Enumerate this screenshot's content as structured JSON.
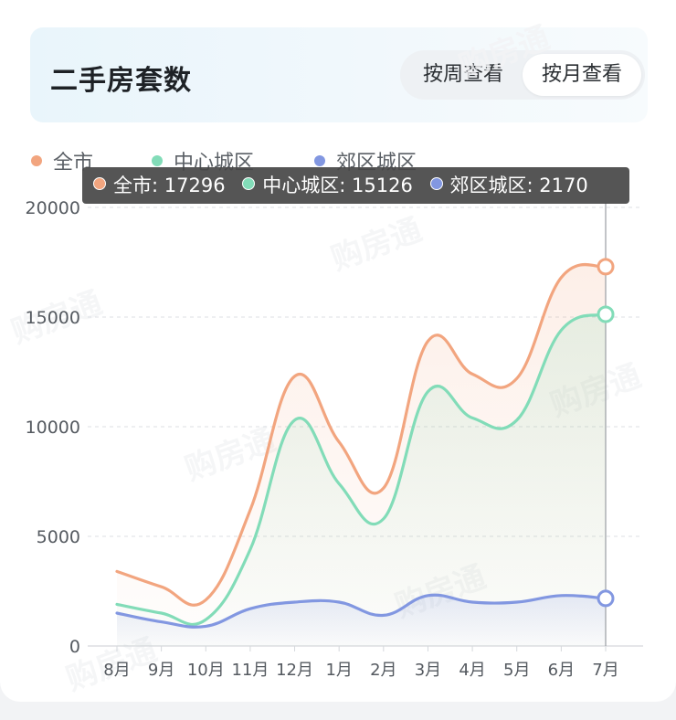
{
  "header": {
    "title": "二手房套数"
  },
  "toggle": {
    "week_label": "按周查看",
    "month_label": "按月查看",
    "selected": "按月查看"
  },
  "watermark": "购房通",
  "colors": {
    "all": "#f2a57f",
    "central": "#82dcb8",
    "suburb": "#8297e1",
    "header_bg": "#eaf6fb"
  },
  "legend": [
    {
      "label": "全市",
      "color": "#f2a57f"
    },
    {
      "label": "中心城区",
      "color": "#82dcb8"
    },
    {
      "label": "郊区城区",
      "color": "#8297e1"
    }
  ],
  "tooltip": {
    "items": [
      {
        "label": "全市",
        "value": "17296",
        "color": "#f2a57f"
      },
      {
        "label": "中心城区",
        "value": "15126",
        "color": "#82dcb8"
      },
      {
        "label": "郊区城区",
        "value": "2170",
        "color": "#8297e1"
      }
    ]
  },
  "chart_data": {
    "type": "area",
    "categories": [
      "8月",
      "9月",
      "10月",
      "11月",
      "12月",
      "1月",
      "2月",
      "3月",
      "4月",
      "5月",
      "6月",
      "7月"
    ],
    "series": [
      {
        "name": "全市",
        "color": "#f2a57f",
        "values": [
          3400,
          2700,
          2100,
          6200,
          12300,
          9300,
          7200,
          13900,
          12400,
          12200,
          16800,
          17296
        ]
      },
      {
        "name": "中心城区",
        "color": "#82dcb8",
        "values": [
          1900,
          1500,
          1200,
          4400,
          10300,
          7400,
          5800,
          11600,
          10400,
          10300,
          14400,
          15126
        ]
      },
      {
        "name": "郊区城区",
        "color": "#8297e1",
        "values": [
          1500,
          1100,
          900,
          1700,
          2000,
          2000,
          1400,
          2300,
          2000,
          2000,
          2300,
          2170
        ]
      }
    ],
    "yticks": [
      "0",
      "5000",
      "10000",
      "15000",
      "20000"
    ],
    "ylim": [
      0,
      20000
    ],
    "grid": true,
    "legend_position": "top-left",
    "highlighted_category": "7月"
  }
}
